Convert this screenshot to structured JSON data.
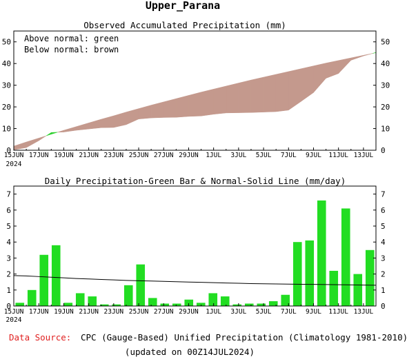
{
  "title": "Upper_Parana",
  "footer": {
    "source_label": "Data Source:",
    "source_text": "CPC (Gauge-Based) Unified Precipitation (Climatology 1981-2010)",
    "updated": "(updated on 00Z14JUL2024)"
  },
  "colors": {
    "above": "#2ed02e",
    "below": "#c4998d",
    "bar": "#22dd22",
    "normal_line": "#000000",
    "source_label": "#e02020",
    "text": "#000000"
  },
  "chart_data": [
    {
      "type": "area",
      "title": "Observed Accumulated Precipitation (mm)",
      "annotations": [
        "Above normal: green",
        "Below normal: brown"
      ],
      "x": [
        "2024-06-15",
        "2024-06-16",
        "2024-06-17",
        "2024-06-18",
        "2024-06-19",
        "2024-06-20",
        "2024-06-21",
        "2024-06-22",
        "2024-06-23",
        "2024-06-24",
        "2024-06-25",
        "2024-06-26",
        "2024-06-27",
        "2024-06-28",
        "2024-06-29",
        "2024-06-30",
        "2024-07-01",
        "2024-07-02",
        "2024-07-03",
        "2024-07-04",
        "2024-07-05",
        "2024-07-06",
        "2024-07-07",
        "2024-07-08",
        "2024-07-09",
        "2024-07-10",
        "2024-07-11",
        "2024-07-12",
        "2024-07-13",
        "2024-07-14"
      ],
      "xticks": [
        "15JUN",
        "17JUN",
        "19JUN",
        "21JUN",
        "23JUN",
        "25JUN",
        "27JUN",
        "29JUN",
        "1JUL",
        "3JUL",
        "5JUL",
        "7JUL",
        "9JUL",
        "11JUL",
        "13JUL"
      ],
      "xtick_sub": "2024",
      "series": [
        {
          "role": "observed",
          "values": [
            0.2,
            1.2,
            4.4,
            8.2,
            8.4,
            9.2,
            9.8,
            10.4,
            10.5,
            11.8,
            14.4,
            14.9,
            15.1,
            15.2,
            15.6,
            15.8,
            16.6,
            17.2,
            17.3,
            17.4,
            17.6,
            17.8,
            18.5,
            22.5,
            26.6,
            33.2,
            35.4,
            41.5,
            43.5,
            45.1
          ]
        },
        {
          "role": "normal",
          "values": [
            1.9,
            3.8,
            5.6,
            7.4,
            9.2,
            10.9,
            12.6,
            14.3,
            15.9,
            17.6,
            19.2,
            20.8,
            22.3,
            23.8,
            25.3,
            26.8,
            28.2,
            29.6,
            31.0,
            32.4,
            33.7,
            35.0,
            36.3,
            37.6,
            38.9,
            40.2,
            41.4,
            42.6,
            43.8,
            45.0
          ]
        }
      ],
      "ylim": [
        0,
        55
      ],
      "yticks": [
        0,
        10,
        20,
        30,
        40,
        50
      ]
    },
    {
      "type": "bar",
      "title": "Daily Precipitation-Green Bar & Normal-Solid Line (mm/day)",
      "x": [
        "2024-06-15",
        "2024-06-16",
        "2024-06-17",
        "2024-06-18",
        "2024-06-19",
        "2024-06-20",
        "2024-06-21",
        "2024-06-22",
        "2024-06-23",
        "2024-06-24",
        "2024-06-25",
        "2024-06-26",
        "2024-06-27",
        "2024-06-28",
        "2024-06-29",
        "2024-06-30",
        "2024-07-01",
        "2024-07-02",
        "2024-07-03",
        "2024-07-04",
        "2024-07-05",
        "2024-07-06",
        "2024-07-07",
        "2024-07-08",
        "2024-07-09",
        "2024-07-10",
        "2024-07-11",
        "2024-07-12",
        "2024-07-13",
        "2024-07-14"
      ],
      "xticks": [
        "15JUN",
        "17JUN",
        "19JUN",
        "21JUN",
        "23JUN",
        "25JUN",
        "27JUN",
        "29JUN",
        "1JUL",
        "3JUL",
        "5JUL",
        "7JUL",
        "9JUL",
        "11JUL",
        "13JUL"
      ],
      "xtick_sub": "2024",
      "values": [
        0.2,
        1.0,
        3.2,
        3.8,
        0.2,
        0.8,
        0.6,
        0.1,
        0.1,
        1.3,
        2.6,
        0.5,
        0.15,
        0.15,
        0.4,
        0.2,
        0.8,
        0.6,
        0.1,
        0.15,
        0.15,
        0.3,
        0.7,
        4.0,
        4.1,
        6.6,
        2.2,
        6.1,
        2.0,
        3.5
      ],
      "normal": [
        1.9,
        1.88,
        1.84,
        1.8,
        1.76,
        1.72,
        1.69,
        1.66,
        1.63,
        1.6,
        1.58,
        1.56,
        1.54,
        1.52,
        1.5,
        1.48,
        1.46,
        1.44,
        1.42,
        1.4,
        1.39,
        1.38,
        1.37,
        1.36,
        1.35,
        1.34,
        1.33,
        1.32,
        1.31,
        1.3
      ],
      "ylim": [
        0,
        7.5
      ],
      "yticks": [
        0,
        1,
        2,
        3,
        4,
        5,
        6,
        7
      ]
    }
  ]
}
